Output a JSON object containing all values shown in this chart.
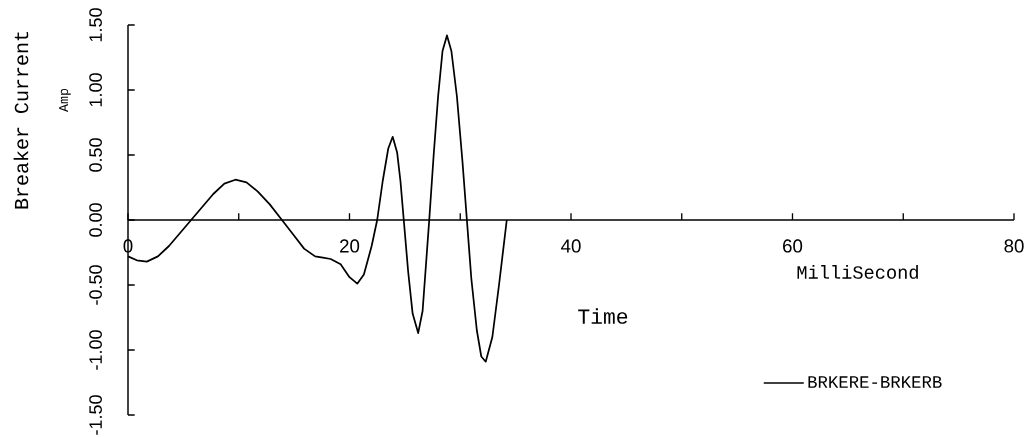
{
  "chart_data": {
    "type": "line",
    "xlabel": "Time",
    "ylabel": "Breaker Current",
    "annotations": [
      "Amp",
      "MilliSecond"
    ],
    "x": [
      0,
      0.8,
      1.7,
      2.7,
      3.7,
      4.7,
      5.7,
      6.7,
      7.7,
      8.7,
      9.7,
      10.7,
      11.7,
      12.8,
      13.9,
      14.9,
      15.9,
      16.9,
      17.6,
      18.3,
      19.2,
      20.0,
      20.7,
      21.3,
      22.0,
      22.5,
      23.0,
      23.5,
      23.9,
      24.3,
      24.6,
      24.9,
      25.3,
      25.7,
      26.2,
      26.6,
      26.9,
      27.2,
      27.6,
      28.0,
      28.4,
      28.8,
      29.2,
      29.7,
      30.2,
      30.6,
      31.0,
      31.5,
      31.9,
      32.3,
      32.9,
      33.5,
      34.2
    ],
    "series": [
      {
        "name": "BRKERE-BRKERB",
        "color": "#000000",
        "values": [
          -0.28,
          -0.31,
          -0.32,
          -0.28,
          -0.2,
          -0.1,
          0,
          0.1,
          0.2,
          0.28,
          0.31,
          0.29,
          0.22,
          0.12,
          0,
          -0.11,
          -0.22,
          -0.28,
          -0.29,
          -0.3,
          -0.34,
          -0.44,
          -0.49,
          -0.42,
          -0.2,
          0,
          0.3,
          0.55,
          0.64,
          0.52,
          0.3,
          0,
          -0.4,
          -0.72,
          -0.87,
          -0.7,
          -0.35,
          0,
          0.5,
          0.95,
          1.3,
          1.42,
          1.3,
          0.95,
          0.45,
          0,
          -0.45,
          -0.85,
          -1.05,
          -1.09,
          -0.9,
          -0.5,
          0
        ]
      }
    ],
    "xlim": [
      0,
      80
    ],
    "ylim": [
      -1.5,
      1.5
    ],
    "xticks": [
      0,
      {
        "value": 10,
        "label": null
      },
      20,
      {
        "value": 30,
        "label": null
      },
      40,
      {
        "value": 50,
        "label": null
      },
      60,
      {
        "value": 70,
        "label": null
      },
      80
    ],
    "yticks": [
      {
        "value": -1.5,
        "label": "-1.50"
      },
      {
        "value": -1.0,
        "label": "-1.00"
      },
      {
        "value": -0.5,
        "label": "-0.50"
      },
      {
        "value": 0,
        "label": "0.00"
      },
      {
        "value": 0.5,
        "label": "0.50"
      },
      {
        "value": 1.0,
        "label": "1.00"
      },
      {
        "value": 1.5,
        "label": "1.50"
      }
    ],
    "legend": "bottom right",
    "line_style": "solid"
  }
}
